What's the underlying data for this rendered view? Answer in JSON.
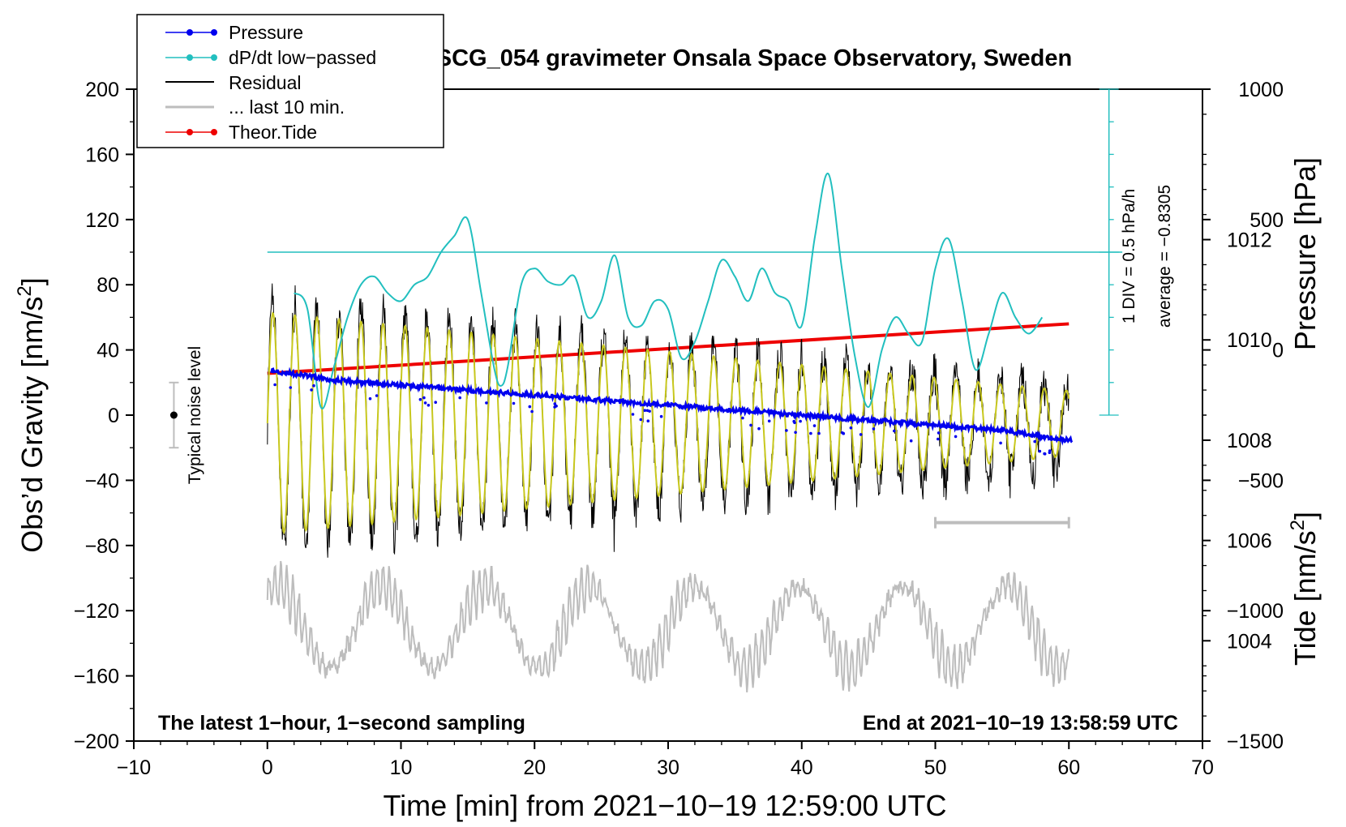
{
  "chart_data": {
    "type": "line",
    "title": "SCG_054 gravimeter Onsala Space Observatory, Sweden",
    "xlabel": "Time [min] from 2021−10−19 12:59:00 UTC",
    "ylabel": "Obs’d Gravity [nm/s²]",
    "ylabel_main": "Obs’d Gravity [nm/s",
    "ylabel_sup": "2",
    "ylabel_end": "]",
    "pressure_label": "Pressure [hPa]",
    "tide_label_main": "Tide [nm/s",
    "tide_label_sup": "2",
    "tide_label_end": "]",
    "xlim": [
      -10,
      70
    ],
    "ylim": [
      -200,
      200
    ],
    "x_ticks": [
      -10,
      0,
      10,
      20,
      30,
      40,
      50,
      60,
      70
    ],
    "x_tick_labels": [
      "−10",
      "0",
      "10",
      "20",
      "30",
      "40",
      "50",
      "60",
      "70"
    ],
    "y_ticks": [
      -200,
      -160,
      -120,
      -80,
      -40,
      0,
      40,
      80,
      120,
      160,
      200
    ],
    "y_tick_labels": [
      "−200",
      "−160",
      "−120",
      "−80",
      "−40",
      "0",
      "40",
      "80",
      "120",
      "160",
      "200"
    ],
    "pressure_ticks": [
      1004,
      1006,
      1008,
      1010,
      1012
    ],
    "pressure_tick_labels": [
      "1004",
      "1006",
      "1008",
      "1010",
      "1012"
    ],
    "pressure_range_hpa": [
      1002.0,
      1015.0
    ],
    "tide_ticks": [
      -1500,
      -1000,
      -500,
      0,
      500,
      1000
    ],
    "tide_tick_labels": [
      "−1500",
      "−1000",
      "−500",
      "0",
      "500",
      "1000"
    ],
    "tide_range": [
      -1500,
      1000
    ],
    "legend": [
      "Pressure",
      "dP/dt low−passed",
      "Residual",
      "... last 10 min.",
      "Theor.Tide"
    ],
    "legend_position": "top-left",
    "colors": {
      "pressure": "#0000ee",
      "dpdt": "#22bfbf",
      "residual": "#000000",
      "last10": "#bdbdbd",
      "tide": "#ee0000",
      "fit": "#c8c81e"
    },
    "annotations": {
      "bottom_left": "The latest 1−hour, 1−second sampling",
      "bottom_right": "End at 2021−10−19 13:58:59 UTC",
      "noise_label": "Typical noise level",
      "div_label": "1 DIV = 0.5 hPa/h",
      "avg_label": "average = −0.8305"
    },
    "noise_bar": {
      "x": -7,
      "center": 0,
      "low": -20,
      "high": 20
    },
    "last10_bar": {
      "x_start": 50,
      "x_end": 60,
      "y": -66
    },
    "dpdt_reference_y": 100,
    "dpdt_scale_axis": {
      "x": 63,
      "y_start": 0,
      "y_end": 200
    },
    "series": {
      "pressure_hpa": {
        "t": [
          0,
          5,
          10,
          15,
          20,
          25,
          30,
          35,
          40,
          45,
          50,
          55,
          60
        ],
        "p": [
          1009.4,
          1009.2,
          1009.1,
          1009.0,
          1008.9,
          1008.8,
          1008.7,
          1008.6,
          1008.5,
          1008.4,
          1008.3,
          1008.2,
          1008.0
        ]
      },
      "dpdt_nms2": {
        "t": [
          2,
          3,
          4,
          5,
          6,
          7,
          8,
          9,
          10,
          11,
          12,
          13,
          14,
          15,
          16,
          17,
          17.5,
          18,
          19,
          20,
          21,
          22,
          23,
          24,
          25,
          26,
          27,
          28,
          29,
          30,
          31,
          32,
          33,
          34,
          35,
          36,
          37,
          38,
          39,
          40,
          41,
          42,
          43,
          44,
          45,
          46,
          47,
          48,
          49,
          50,
          51,
          52,
          53,
          54,
          55,
          56,
          57,
          58
        ],
        "y": [
          75,
          65,
          5,
          30,
          60,
          80,
          85,
          75,
          70,
          80,
          85,
          100,
          110,
          120,
          75,
          28,
          18,
          30,
          80,
          90,
          82,
          80,
          85,
          60,
          70,
          98,
          60,
          55,
          70,
          65,
          35,
          45,
          70,
          95,
          85,
          70,
          90,
          75,
          70,
          55,
          110,
          148,
          90,
          35,
          5,
          40,
          60,
          50,
          45,
          90,
          108,
          70,
          28,
          50,
          75,
          60,
          50,
          60
        ]
      },
      "residual": {
        "t_start": 0,
        "t_end": 60,
        "period_min": 1.65,
        "amp_start": 75,
        "amp_end": 25,
        "offset_start": -5,
        "offset_end": -8
      },
      "fit_line": {
        "t_start": 0,
        "t_end": 60,
        "period_min": 1.65,
        "amp_start": 68,
        "amp_end": 20
      },
      "last10_trace": {
        "center": -130,
        "long_amp": 25,
        "short_amp": 14,
        "long_period_min": 7.8,
        "short_period_min": 0.45
      },
      "tide": {
        "t": [
          0,
          60
        ],
        "tide_nms2": [
          -90,
          100
        ]
      }
    }
  }
}
